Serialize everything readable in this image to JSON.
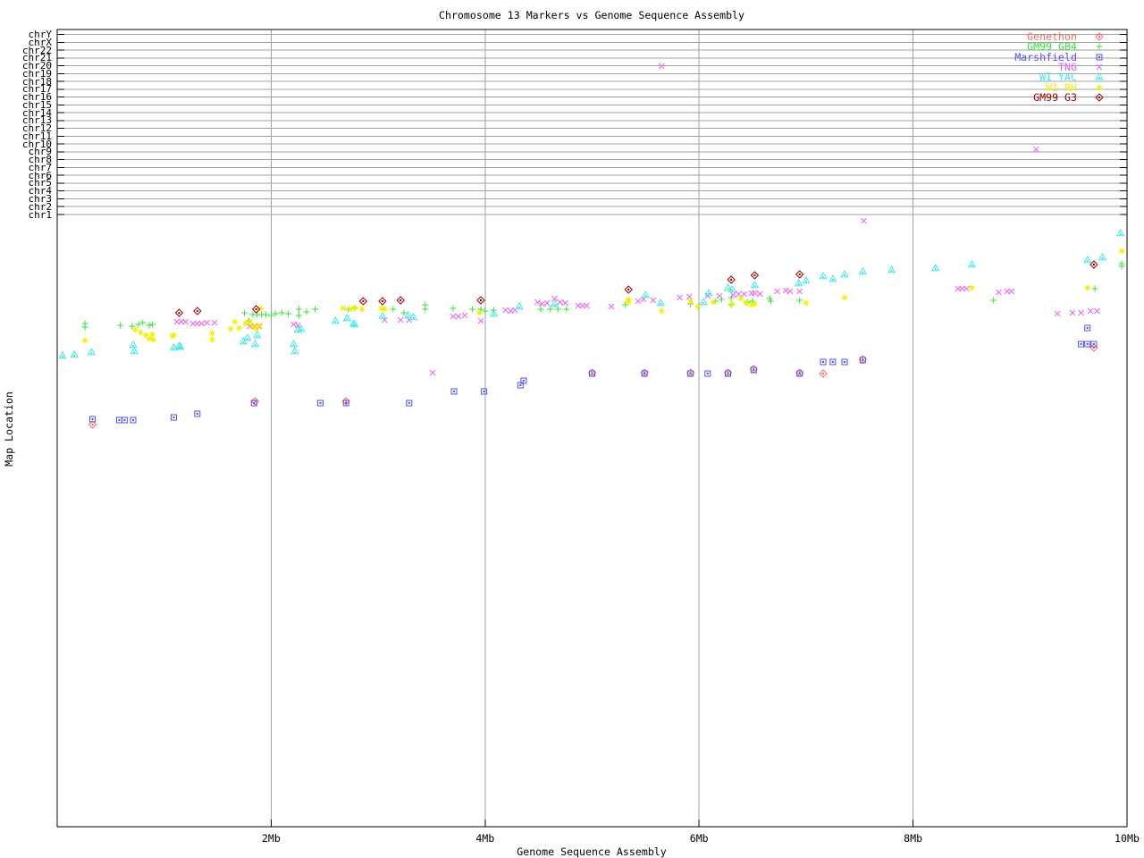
{
  "title": "Chromosome 13 Markers vs Genome Sequence Assembly",
  "x_axis": {
    "label": "Genome Sequence Assembly",
    "tick_labels": [
      "2Mb",
      "4Mb",
      "6Mb",
      "8Mb",
      "10Mb"
    ],
    "tick_values": [
      2,
      4,
      6,
      8,
      10
    ],
    "range": [
      0,
      10
    ]
  },
  "y_axis": {
    "label": "Map Location",
    "chromosomes": [
      "chrY",
      "chrX",
      "chr22",
      "chr21",
      "chr20",
      "chr19",
      "chr18",
      "chr17",
      "chr16",
      "chr15",
      "chr14",
      "chr13",
      "chr12",
      "chr11",
      "chr10",
      "chr9",
      "chr8",
      "chr7",
      "chr6",
      "chr5",
      "chr4",
      "chr3",
      "chr2",
      "chr1"
    ]
  },
  "legend": [
    {
      "label": "Genethon",
      "symbol": "diamond-dot",
      "color": "#ff6a6a"
    },
    {
      "label": "GM99 GB4",
      "symbol": "plus",
      "color": "#3ae23a"
    },
    {
      "label": "Marshfield",
      "symbol": "square-dot",
      "color": "#5050f0"
    },
    {
      "label": "TNG",
      "symbol": "cross",
      "color": "#f060f0"
    },
    {
      "label": "WI YAC",
      "symbol": "triangle-dot",
      "color": "#40e8e8"
    },
    {
      "label": "WI RH",
      "symbol": "asterisk",
      "color": "#f0f000"
    },
    {
      "label": "GM99 G3",
      "symbol": "diamond-dot",
      "color": "#a00000"
    }
  ],
  "colors": {
    "grid": "#a0a0a0",
    "axis": "#000000",
    "background": "#ffffff"
  },
  "chart_data": {
    "type": "scatter",
    "title": "Chromosome 13 Markers vs Genome Sequence Assembly",
    "xlabel": "Genome Sequence Assembly",
    "ylabel": "Map Location",
    "x_units": "Mb",
    "y_units": "map-location screen px (no numeric scale shown on axis)",
    "xlim": [
      0,
      10
    ],
    "grid": "vertical lines at 2,4,6,8 Mb and one horizontal line per chromosome row",
    "legend_position": "top-right inside plot",
    "series": [
      {
        "name": "Genethon",
        "symbol": "diamond-dot",
        "color": "#ff6a6a",
        "points": [
          [
            0.33,
            475
          ],
          [
            1.85,
            449
          ],
          [
            2.7,
            449
          ],
          [
            5.0,
            417
          ],
          [
            5.49,
            417
          ],
          [
            5.92,
            417
          ],
          [
            6.27,
            417
          ],
          [
            6.51,
            413
          ],
          [
            6.94,
            417
          ],
          [
            7.16,
            418
          ],
          [
            7.53,
            402
          ],
          [
            9.69,
            389
          ]
        ]
      },
      {
        "name": "GM99 GB4",
        "symbol": "plus",
        "color": "#3ae23a",
        "points": [
          [
            0.26,
            362
          ],
          [
            0.26,
            366
          ],
          [
            0.59,
            364
          ],
          [
            0.7,
            365
          ],
          [
            0.76,
            363
          ],
          [
            0.8,
            361
          ],
          [
            0.86,
            364
          ],
          [
            0.89,
            363
          ],
          [
            1.75,
            350
          ],
          [
            1.79,
            359
          ],
          [
            1.83,
            352
          ],
          [
            1.87,
            352
          ],
          [
            1.91,
            352
          ],
          [
            1.95,
            352
          ],
          [
            2.0,
            353
          ],
          [
            2.04,
            351
          ],
          [
            2.1,
            350
          ],
          [
            2.16,
            351
          ],
          [
            2.26,
            346
          ],
          [
            2.26,
            353
          ],
          [
            2.33,
            349
          ],
          [
            2.41,
            346
          ],
          [
            2.72,
            346
          ],
          [
            2.78,
            345
          ],
          [
            3.14,
            346
          ],
          [
            3.24,
            350
          ],
          [
            3.44,
            341
          ],
          [
            3.44,
            346
          ],
          [
            3.7,
            345
          ],
          [
            3.88,
            346
          ],
          [
            3.96,
            346
          ],
          [
            4.0,
            348
          ],
          [
            4.08,
            347
          ],
          [
            4.52,
            346
          ],
          [
            4.61,
            346
          ],
          [
            4.68,
            346
          ],
          [
            4.76,
            346
          ],
          [
            5.31,
            341
          ],
          [
            5.92,
            340
          ],
          [
            6.15,
            337
          ],
          [
            6.21,
            335
          ],
          [
            6.3,
            333
          ],
          [
            6.3,
            341
          ],
          [
            6.45,
            338
          ],
          [
            6.5,
            337
          ],
          [
            6.66,
            334
          ],
          [
            6.67,
            337
          ],
          [
            6.94,
            336
          ],
          [
            8.75,
            336
          ],
          [
            9.7,
            323
          ],
          [
            9.95,
            295
          ],
          [
            9.95,
            298
          ]
        ]
      },
      {
        "name": "Marshfield",
        "symbol": "square-dot",
        "color": "#5050f0",
        "points": [
          [
            0.33,
            469
          ],
          [
            0.58,
            470
          ],
          [
            0.63,
            470
          ],
          [
            0.71,
            470
          ],
          [
            1.09,
            467
          ],
          [
            1.31,
            463
          ],
          [
            1.84,
            451
          ],
          [
            2.46,
            451
          ],
          [
            2.7,
            451
          ],
          [
            3.29,
            451
          ],
          [
            3.71,
            438
          ],
          [
            3.99,
            438
          ],
          [
            4.33,
            431
          ],
          [
            4.36,
            426
          ],
          [
            5.0,
            418
          ],
          [
            5.49,
            418
          ],
          [
            5.92,
            418
          ],
          [
            6.08,
            418
          ],
          [
            6.27,
            418
          ],
          [
            6.51,
            414
          ],
          [
            6.94,
            418
          ],
          [
            7.16,
            405
          ],
          [
            7.25,
            405
          ],
          [
            7.36,
            405
          ],
          [
            7.53,
            403
          ],
          [
            9.63,
            367
          ],
          [
            9.57,
            385
          ],
          [
            9.63,
            385
          ],
          [
            9.69,
            385
          ]
        ]
      },
      {
        "name": "TNG",
        "symbol": "cross",
        "color": "#f060f0",
        "points": [
          [
            1.12,
            360
          ],
          [
            1.16,
            360
          ],
          [
            1.2,
            360
          ],
          [
            1.27,
            362
          ],
          [
            1.31,
            362
          ],
          [
            1.35,
            362
          ],
          [
            1.4,
            361
          ],
          [
            1.47,
            361
          ],
          [
            1.8,
            365
          ],
          [
            1.85,
            365
          ],
          [
            1.89,
            365
          ],
          [
            2.21,
            363
          ],
          [
            2.25,
            364
          ],
          [
            3.06,
            358
          ],
          [
            3.21,
            358
          ],
          [
            3.29,
            358
          ],
          [
            3.51,
            417
          ],
          [
            3.7,
            354
          ],
          [
            3.75,
            354
          ],
          [
            3.81,
            353
          ],
          [
            3.96,
            359
          ],
          [
            4.19,
            347
          ],
          [
            4.24,
            348
          ],
          [
            4.28,
            347
          ],
          [
            4.49,
            338
          ],
          [
            4.53,
            340
          ],
          [
            4.58,
            339
          ],
          [
            4.65,
            334
          ],
          [
            4.7,
            338
          ],
          [
            4.75,
            339
          ],
          [
            4.87,
            342
          ],
          [
            4.91,
            342
          ],
          [
            4.95,
            342
          ],
          [
            5.18,
            343
          ],
          [
            5.43,
            337
          ],
          [
            5.48,
            335
          ],
          [
            5.57,
            336
          ],
          [
            5.65,
            74
          ],
          [
            5.82,
            333
          ],
          [
            5.91,
            332
          ],
          [
            6.08,
            331
          ],
          [
            6.19,
            331
          ],
          [
            6.32,
            330
          ],
          [
            6.37,
            329
          ],
          [
            6.42,
            329
          ],
          [
            6.49,
            328
          ],
          [
            6.52,
            328
          ],
          [
            6.57,
            329
          ],
          [
            6.73,
            326
          ],
          [
            6.81,
            325
          ],
          [
            6.85,
            326
          ],
          [
            6.94,
            326
          ],
          [
            7.54,
            247
          ],
          [
            8.42,
            323
          ],
          [
            8.46,
            323
          ],
          [
            8.5,
            323
          ],
          [
            8.8,
            327
          ],
          [
            8.88,
            326
          ],
          [
            8.92,
            326
          ],
          [
            9.15,
            167
          ],
          [
            9.35,
            351
          ],
          [
            9.49,
            350
          ],
          [
            9.57,
            350
          ],
          [
            9.66,
            348
          ],
          [
            9.72,
            348
          ]
        ]
      },
      {
        "name": "WI YAC",
        "symbol": "triangle-dot",
        "color": "#40e8e8",
        "points": [
          [
            0.05,
            398
          ],
          [
            0.16,
            397
          ],
          [
            0.32,
            394
          ],
          [
            0.71,
            386
          ],
          [
            0.72,
            393
          ],
          [
            1.09,
            389
          ],
          [
            1.14,
            387
          ],
          [
            1.15,
            388
          ],
          [
            1.74,
            382
          ],
          [
            1.78,
            378
          ],
          [
            1.85,
            385
          ],
          [
            1.87,
            375
          ],
          [
            2.21,
            385
          ],
          [
            2.22,
            393
          ],
          [
            2.25,
            369
          ],
          [
            2.28,
            368
          ],
          [
            2.6,
            359
          ],
          [
            2.71,
            356
          ],
          [
            2.77,
            362
          ],
          [
            2.78,
            363
          ],
          [
            3.04,
            354
          ],
          [
            3.28,
            353
          ],
          [
            3.33,
            355
          ],
          [
            4.08,
            351
          ],
          [
            4.32,
            343
          ],
          [
            4.65,
            340
          ],
          [
            5.5,
            330
          ],
          [
            5.64,
            339
          ],
          [
            6.04,
            338
          ],
          [
            6.09,
            328
          ],
          [
            6.27,
            322
          ],
          [
            6.31,
            324
          ],
          [
            6.52,
            319
          ],
          [
            6.93,
            317
          ],
          [
            7.0,
            314
          ],
          [
            7.16,
            309
          ],
          [
            7.25,
            312
          ],
          [
            7.36,
            307
          ],
          [
            7.53,
            304
          ],
          [
            7.8,
            302
          ],
          [
            8.21,
            300
          ],
          [
            8.55,
            296
          ],
          [
            9.63,
            291
          ],
          [
            9.77,
            288
          ],
          [
            9.94,
            261
          ]
        ]
      },
      {
        "name": "WI RH",
        "symbol": "asterisk",
        "color": "#f0f000",
        "points": [
          [
            0.26,
            381
          ],
          [
            0.73,
            369
          ],
          [
            0.78,
            372
          ],
          [
            0.83,
            375
          ],
          [
            0.86,
            379
          ],
          [
            0.89,
            374
          ],
          [
            0.9,
            380
          ],
          [
            1.08,
            376
          ],
          [
            1.09,
            375
          ],
          [
            1.45,
            373
          ],
          [
            1.45,
            380
          ],
          [
            1.62,
            368
          ],
          [
            1.66,
            360
          ],
          [
            1.7,
            367
          ],
          [
            1.76,
            362
          ],
          [
            1.8,
            360
          ],
          [
            1.83,
            365
          ],
          [
            1.86,
            368
          ],
          [
            1.89,
            364
          ],
          [
            1.9,
            345
          ],
          [
            2.67,
            345
          ],
          [
            2.74,
            346
          ],
          [
            2.78,
            344
          ],
          [
            2.85,
            346
          ],
          [
            3.03,
            345
          ],
          [
            3.06,
            346
          ],
          [
            3.95,
            350
          ],
          [
            5.34,
            335
          ],
          [
            5.34,
            338
          ],
          [
            5.65,
            348
          ],
          [
            5.92,
            337
          ],
          [
            5.99,
            343
          ],
          [
            6.13,
            338
          ],
          [
            6.31,
            340
          ],
          [
            6.39,
            334
          ],
          [
            6.44,
            339
          ],
          [
            6.49,
            341
          ],
          [
            6.52,
            340
          ],
          [
            7.0,
            339
          ],
          [
            7.36,
            333
          ],
          [
            8.55,
            322
          ],
          [
            9.63,
            322
          ],
          [
            9.95,
            281
          ]
        ]
      },
      {
        "name": "GM99 G3",
        "symbol": "diamond-dot",
        "color": "#a00000",
        "points": [
          [
            1.14,
            350
          ],
          [
            1.31,
            348
          ],
          [
            1.86,
            346
          ],
          [
            2.86,
            337
          ],
          [
            3.04,
            337
          ],
          [
            3.21,
            336
          ],
          [
            3.96,
            336
          ],
          [
            5.34,
            324
          ],
          [
            6.3,
            313
          ],
          [
            6.52,
            308
          ],
          [
            6.94,
            307
          ],
          [
            9.69,
            296
          ]
        ]
      }
    ]
  }
}
